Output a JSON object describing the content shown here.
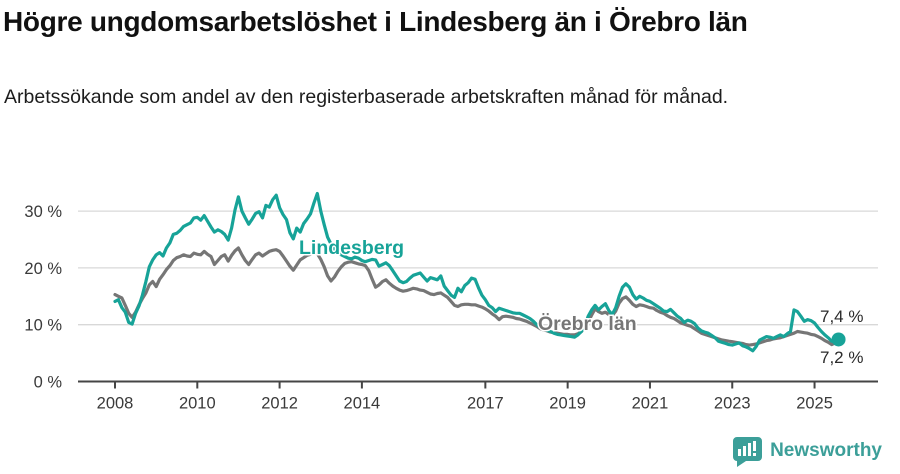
{
  "header": {
    "title": "Högre ungdomsarbetslöshet i Lindesberg än i Örebro län",
    "subtitle": "Arbetssökande som andel av den registerbaserade arbetskraften månad för månad."
  },
  "footer": {
    "brand": "Newsworthy"
  },
  "colors": {
    "accent_teal": "#17a398",
    "line_gray": "#767676",
    "grid": "#d8d8d8",
    "axis": "#454545",
    "tick_text": "#3a3a3a",
    "end_label_text": "#2b2b2b",
    "title_text": "#111111",
    "brand_teal": "#3c9f99"
  },
  "chart_data": {
    "type": "line",
    "title": "Högre ungdomsarbetslöshet i Lindesberg än i Örebro län",
    "subtitle": "Arbetssökande som andel av den registerbaserade arbetskraften månad för månad.",
    "unit": "%",
    "x_start": "2008-01",
    "x_interval": "monthly",
    "x_end": "2025-08",
    "ylim": [
      0,
      35
    ],
    "grid": true,
    "grid_values": [
      10,
      20,
      30
    ],
    "y_ticks": [
      {
        "label": "0 %",
        "value": 0
      },
      {
        "label": "10 %",
        "value": 10
      },
      {
        "label": "20 %",
        "value": 20
      },
      {
        "label": "30 %",
        "value": 30
      }
    ],
    "x_ticks": [
      {
        "label": "2008",
        "year": 2008
      },
      {
        "label": "2010",
        "year": 2010
      },
      {
        "label": "2012",
        "year": 2012
      },
      {
        "label": "2014",
        "year": 2014
      },
      {
        "label": "2017",
        "year": 2017
      },
      {
        "label": "2019",
        "year": 2019
      },
      {
        "label": "2021",
        "year": 2021
      },
      {
        "label": "2023",
        "year": 2023
      },
      {
        "label": "2025",
        "year": 2025
      }
    ],
    "series": [
      {
        "name": "Örebro län",
        "color": "#767676",
        "end_label": "7,2 %",
        "end_dot": false,
        "values": [
          15.3,
          15.0,
          14.7,
          13.4,
          12.0,
          11.3,
          12.2,
          13.5,
          14.6,
          15.6,
          17.0,
          17.6,
          16.7,
          18.0,
          18.8,
          19.7,
          20.4,
          21.3,
          21.8,
          22.0,
          22.3,
          22.1,
          22.0,
          22.6,
          22.4,
          22.3,
          22.9,
          22.4,
          22.0,
          20.6,
          21.3,
          22.0,
          22.3,
          21.2,
          22.2,
          23.0,
          23.5,
          22.3,
          21.3,
          20.6,
          21.5,
          22.3,
          22.6,
          22.1,
          22.5,
          22.9,
          23.1,
          23.2,
          22.9,
          22.1,
          21.2,
          20.3,
          19.6,
          20.5,
          21.4,
          21.8,
          22.2,
          22.4,
          22.6,
          22.5,
          21.5,
          20.2,
          18.6,
          17.7,
          18.4,
          19.4,
          20.2,
          20.8,
          21.0,
          21.1,
          20.9,
          20.7,
          20.6,
          20.4,
          19.5,
          18.0,
          16.6,
          17.0,
          17.6,
          17.9,
          17.3,
          16.8,
          16.4,
          16.1,
          15.9,
          16.0,
          16.2,
          16.4,
          16.3,
          16.1,
          16.0,
          15.7,
          15.4,
          15.3,
          15.5,
          15.6,
          15.2,
          14.8,
          14.1,
          13.4,
          13.2,
          13.5,
          13.6,
          13.6,
          13.5,
          13.5,
          13.3,
          13.1,
          12.8,
          12.4,
          11.9,
          11.5,
          10.9,
          11.4,
          11.5,
          11.4,
          11.3,
          11.1,
          11.0,
          10.8,
          10.6,
          10.3,
          10.0,
          9.7,
          9.3,
          9.1,
          8.9,
          8.7,
          8.6,
          8.5,
          8.4,
          8.3,
          8.3,
          8.2,
          8.2,
          8.4,
          8.8,
          9.4,
          10.5,
          11.7,
          12.8,
          12.3,
          12.0,
          12.2,
          11.8,
          11.6,
          12.4,
          13.8,
          14.6,
          14.9,
          14.3,
          13.6,
          13.2,
          13.5,
          13.4,
          13.2,
          13.0,
          12.9,
          12.5,
          12.2,
          12.0,
          11.6,
          11.3,
          11.1,
          10.7,
          10.3,
          10.1,
          9.9,
          9.7,
          9.3,
          8.9,
          8.5,
          8.3,
          8.1,
          7.9,
          7.7,
          7.5,
          7.3,
          7.2,
          7.1,
          7.0,
          6.9,
          6.8,
          6.7,
          6.5,
          6.4,
          6.5,
          6.6,
          6.8,
          7.0,
          7.2,
          7.3,
          7.5,
          7.6,
          7.7,
          7.9,
          8.1,
          8.3,
          8.5,
          8.8,
          8.7,
          8.6,
          8.5,
          8.3,
          8.2,
          7.9,
          7.6,
          7.2,
          6.9,
          6.5,
          6.8,
          7.2
        ]
      },
      {
        "name": "Lindesberg",
        "color": "#17a398",
        "end_label": "7,4 %",
        "end_dot": true,
        "values": [
          14.1,
          14.4,
          13.0,
          12.2,
          10.4,
          10.1,
          12.0,
          13.3,
          15.2,
          17.6,
          20.2,
          21.4,
          22.3,
          22.7,
          22.1,
          23.5,
          24.4,
          25.9,
          26.1,
          26.6,
          27.3,
          27.6,
          27.9,
          28.8,
          28.9,
          28.4,
          29.2,
          28.2,
          27.2,
          26.3,
          26.7,
          26.4,
          25.9,
          24.9,
          27.0,
          30.2,
          32.5,
          30.0,
          28.8,
          27.7,
          28.6,
          29.6,
          29.9,
          28.8,
          31.0,
          30.7,
          32.0,
          32.8,
          30.6,
          29.4,
          28.5,
          26.2,
          25.1,
          27.0,
          26.3,
          27.8,
          28.6,
          29.5,
          31.4,
          33.1,
          30.0,
          27.6,
          25.4,
          24.2,
          23.2,
          22.6,
          22.3,
          22.0,
          21.7,
          21.6,
          21.9,
          21.7,
          21.3,
          21.1,
          21.3,
          21.5,
          21.4,
          20.3,
          20.6,
          20.9,
          20.4,
          19.5,
          18.6,
          17.7,
          17.4,
          17.6,
          18.2,
          18.7,
          18.9,
          19.1,
          18.4,
          17.7,
          18.3,
          18.1,
          17.9,
          18.6,
          16.8,
          16.0,
          15.2,
          14.8,
          16.4,
          15.8,
          16.9,
          17.4,
          18.2,
          18.0,
          16.5,
          15.2,
          14.4,
          13.4,
          13.0,
          12.3,
          12.9,
          12.7,
          12.5,
          12.3,
          12.1,
          12.0,
          12.0,
          11.7,
          11.4,
          11.1,
          10.6,
          10.0,
          9.5,
          9.3,
          9.0,
          8.8,
          8.5,
          8.3,
          8.2,
          8.1,
          8.0,
          7.9,
          7.8,
          8.2,
          8.8,
          9.8,
          11.5,
          12.6,
          13.4,
          12.6,
          13.2,
          13.7,
          12.5,
          11.8,
          13.0,
          15.0,
          16.6,
          17.2,
          16.6,
          15.3,
          14.5,
          15.0,
          14.7,
          14.3,
          14.1,
          13.7,
          13.3,
          12.9,
          12.4,
          12.3,
          12.7,
          12.1,
          11.5,
          11.1,
          10.4,
          10.8,
          10.6,
          10.2,
          9.4,
          8.9,
          8.7,
          8.5,
          8.1,
          7.7,
          7.1,
          6.9,
          6.7,
          6.5,
          6.4,
          6.6,
          6.8,
          6.3,
          6.1,
          5.8,
          5.4,
          6.2,
          7.3,
          7.6,
          7.9,
          7.8,
          7.6,
          7.9,
          8.2,
          7.9,
          8.4,
          8.8,
          12.6,
          12.3,
          11.5,
          10.6,
          10.9,
          10.7,
          10.3,
          9.5,
          8.8,
          8.2,
          7.7,
          7.1,
          7.0,
          7.4
        ]
      }
    ]
  }
}
